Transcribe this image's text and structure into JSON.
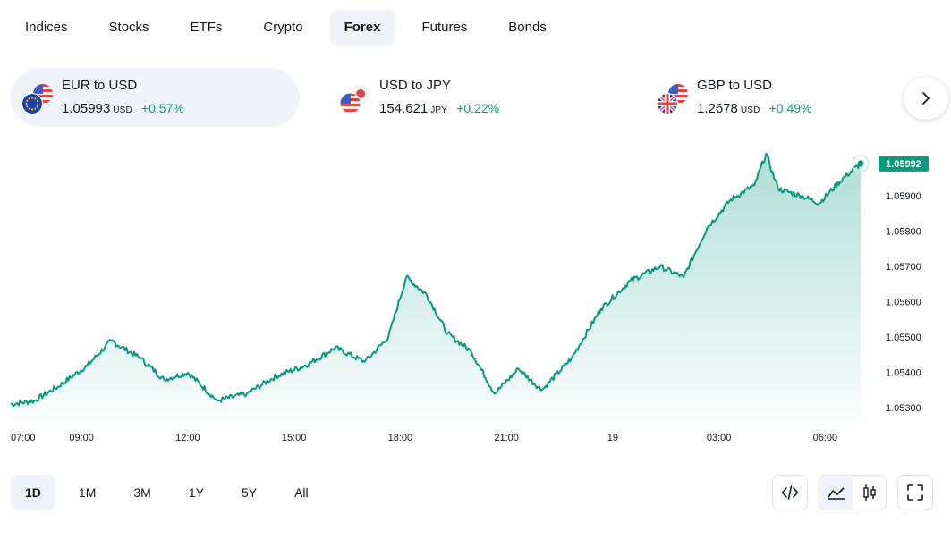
{
  "tabs": [
    {
      "label": "Indices",
      "active": false
    },
    {
      "label": "Stocks",
      "active": false
    },
    {
      "label": "ETFs",
      "active": false
    },
    {
      "label": "Crypto",
      "active": false
    },
    {
      "label": "Forex",
      "active": true
    },
    {
      "label": "Futures",
      "active": false
    },
    {
      "label": "Bonds",
      "active": false
    }
  ],
  "pairs": [
    {
      "name": "EUR to USD",
      "price": "1.05993",
      "currency": "USD",
      "change": "+0.57%",
      "flags": [
        "us-flag-icon",
        "eu-flag-icon"
      ],
      "active": true
    },
    {
      "name": "USD to JPY",
      "price": "154.621",
      "currency": "JPY",
      "change": "+0.22%",
      "flags": [
        "jp-flag-icon",
        "us-flag-icon"
      ],
      "active": false
    },
    {
      "name": "GBP to USD",
      "price": "1.2678",
      "currency": "USD",
      "change": "+0.49%",
      "flags": [
        "us-flag-icon",
        "uk-flag-icon"
      ],
      "active": false
    }
  ],
  "chart_data": {
    "type": "area",
    "series": [],
    "x_tick_labels": [
      "07:00",
      "09:00",
      "12:00",
      "15:00",
      "18:00",
      "21:00",
      "19",
      "03:00",
      "06:00"
    ],
    "y_tick_labels": [
      "1.05900",
      "1.05800",
      "1.05700",
      "1.05600",
      "1.05500",
      "1.05400",
      "1.05300"
    ],
    "y_ticks": [
      1.059,
      1.058,
      1.057,
      1.056,
      1.055,
      1.054,
      1.053
    ],
    "ylim": [
      1.05265,
      1.0605
    ],
    "last_price_label": "1.05992",
    "last_price": 1.05992,
    "key_points": [
      {
        "x": "07:00",
        "y": 1.0531
      },
      {
        "x": "07:40",
        "y": 1.0532
      },
      {
        "x": "08:20",
        "y": 1.0536
      },
      {
        "x": "09:10",
        "y": 1.0542
      },
      {
        "x": "09:50",
        "y": 1.0549
      },
      {
        "x": "10:40",
        "y": 1.0544
      },
      {
        "x": "11:20",
        "y": 1.0538
      },
      {
        "x": "12:00",
        "y": 1.054
      },
      {
        "x": "12:50",
        "y": 1.0532
      },
      {
        "x": "13:40",
        "y": 1.0534
      },
      {
        "x": "14:30",
        "y": 1.0539
      },
      {
        "x": "15:20",
        "y": 1.0542
      },
      {
        "x": "16:10",
        "y": 1.0547
      },
      {
        "x": "17:00",
        "y": 1.0543
      },
      {
        "x": "17:40",
        "y": 1.055
      },
      {
        "x": "18:10",
        "y": 1.0567
      },
      {
        "x": "18:45",
        "y": 1.0562
      },
      {
        "x": "19:20",
        "y": 1.0551
      },
      {
        "x": "20:00",
        "y": 1.0546
      },
      {
        "x": "20:40",
        "y": 1.0534
      },
      {
        "x": "21:20",
        "y": 1.0541
      },
      {
        "x": "22:00",
        "y": 1.0535
      },
      {
        "x": "22:50",
        "y": 1.0544
      },
      {
        "x": "23:40",
        "y": 1.0558
      },
      {
        "x": "00:30",
        "y": 1.0566
      },
      {
        "x": "01:20",
        "y": 1.057
      },
      {
        "x": "02:00",
        "y": 1.0567
      },
      {
        "x": "02:40",
        "y": 1.0581
      },
      {
        "x": "03:20",
        "y": 1.0589
      },
      {
        "x": "04:00",
        "y": 1.0593
      },
      {
        "x": "04:20",
        "y": 1.0602
      },
      {
        "x": "04:40",
        "y": 1.0592
      },
      {
        "x": "05:20",
        "y": 1.059
      },
      {
        "x": "05:50",
        "y": 1.0588
      },
      {
        "x": "06:30",
        "y": 1.0595
      },
      {
        "x": "07:00",
        "y": 1.05992
      }
    ],
    "line_color": "#089981",
    "area_color_top": "#b2dfd4",
    "area_color_bottom": "#ffffff",
    "grid": false
  },
  "ranges": [
    {
      "label": "1D",
      "active": true
    },
    {
      "label": "1M",
      "active": false
    },
    {
      "label": "3M",
      "active": false
    },
    {
      "label": "1Y",
      "active": false
    },
    {
      "label": "5Y",
      "active": false
    },
    {
      "label": "All",
      "active": false
    }
  ],
  "toolbar": {
    "embed_icon": "code-icon",
    "area_style_icon": "area-chart-icon",
    "candle_style_icon": "candlestick-icon",
    "fullscreen_icon": "fullscreen-icon"
  },
  "colors": {
    "accent": "#089981",
    "active_bg": "#f0f3fa",
    "text": "#131722"
  }
}
